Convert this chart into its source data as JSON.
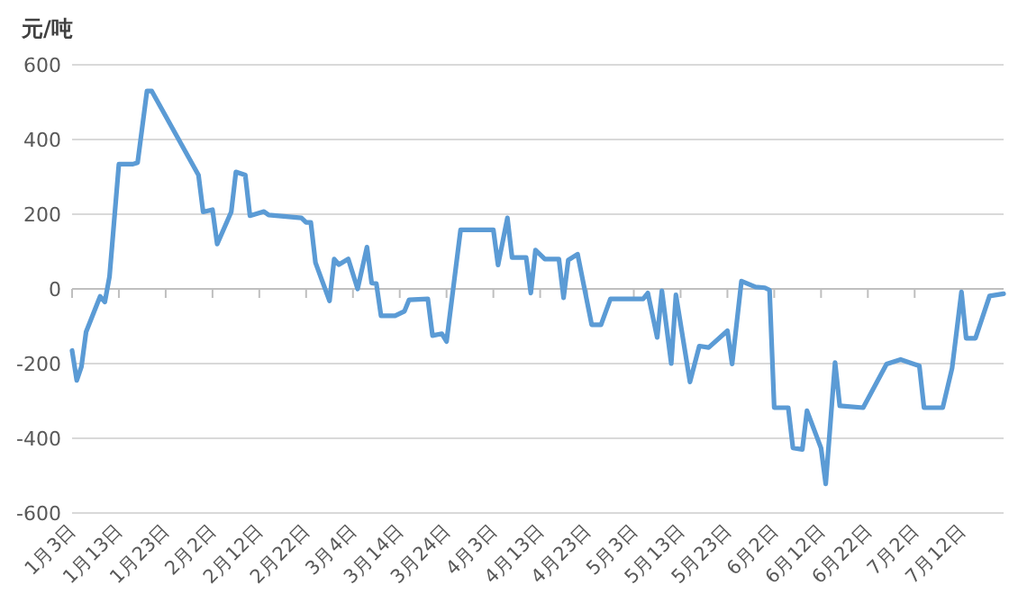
{
  "chart_data": {
    "type": "line",
    "ylabel": "元/吨",
    "color": "#5b9bd5",
    "grid": "y",
    "xlim": [
      "--01-03",
      "--07-21"
    ],
    "ylim": [
      -600,
      600
    ],
    "yticks": [
      -600,
      -400,
      -200,
      0,
      200,
      400,
      600
    ],
    "xticks": [
      {
        "value": "--01-03",
        "label": "1月3日"
      },
      {
        "value": "--01-13",
        "label": "1月13日"
      },
      {
        "value": "--01-23",
        "label": "1月23日"
      },
      {
        "value": "--02-02",
        "label": "2月2日"
      },
      {
        "value": "--02-12",
        "label": "2月12日"
      },
      {
        "value": "--02-22",
        "label": "2月22日"
      },
      {
        "value": "--03-04",
        "label": "3月4日"
      },
      {
        "value": "--03-14",
        "label": "3月14日"
      },
      {
        "value": "--03-24",
        "label": "3月24日"
      },
      {
        "value": "--04-03",
        "label": "4月3日"
      },
      {
        "value": "--04-13",
        "label": "4月13日"
      },
      {
        "value": "--04-23",
        "label": "4月23日"
      },
      {
        "value": "--05-03",
        "label": "5月3日"
      },
      {
        "value": "--05-13",
        "label": "5月13日"
      },
      {
        "value": "--05-23",
        "label": "5月23日"
      },
      {
        "value": "--06-02",
        "label": "6月2日"
      },
      {
        "value": "--06-12",
        "label": "6月12日"
      },
      {
        "value": "--06-22",
        "label": "6月22日"
      },
      {
        "value": "--07-02",
        "label": "7月2日"
      },
      {
        "value": "--07-12",
        "label": "7月12日"
      }
    ],
    "x": [
      "--01-03",
      "--01-04",
      "--01-05",
      "--01-06",
      "--01-09",
      "--01-10",
      "--01-11",
      "--01-13",
      "--01-16",
      "--01-17",
      "--01-19",
      "--01-20",
      "--01-30",
      "--01-31",
      "--02-02",
      "--02-03",
      "--02-06",
      "--02-07",
      "--02-09",
      "--02-10",
      "--02-13",
      "--02-14",
      "--02-21",
      "--02-22",
      "--02-23",
      "--02-24",
      "--02-27",
      "--02-28",
      "--03-01",
      "--03-03",
      "--03-05",
      "--03-07",
      "--03-08",
      "--03-09",
      "--03-10",
      "--03-13",
      "--03-15",
      "--03-16",
      "--03-20",
      "--03-21",
      "--03-23",
      "--03-24",
      "--03-27",
      "--04-03",
      "--04-04",
      "--04-06",
      "--04-07",
      "--04-10",
      "--04-11",
      "--04-12",
      "--04-14",
      "--04-17",
      "--04-18",
      "--04-19",
      "--04-21",
      "--04-24",
      "--04-26",
      "--04-28",
      "--05-05",
      "--05-06",
      "--05-08",
      "--05-09",
      "--05-11",
      "--05-12",
      "--05-15",
      "--05-17",
      "--05-19",
      "--05-23",
      "--05-24",
      "--05-26",
      "--05-29",
      "--05-31",
      "--06-01",
      "--06-02",
      "--06-05",
      "--06-06",
      "--06-08",
      "--06-09",
      "--06-12",
      "--06-13",
      "--06-15",
      "--06-16",
      "--06-21",
      "--06-26",
      "--06-29",
      "--07-03",
      "--07-04",
      "--07-08",
      "--07-10",
      "--07-12",
      "--07-13",
      "--07-15",
      "--07-18",
      "--07-21"
    ],
    "values": [
      -165,
      -245,
      -208,
      -115,
      -20,
      -35,
      33,
      334,
      334,
      338,
      530,
      530,
      305,
      206,
      212,
      120,
      206,
      313,
      305,
      196,
      207,
      198,
      190,
      178,
      178,
      70,
      -32,
      80,
      65,
      80,
      0,
      112,
      16,
      14,
      -72,
      -72,
      -60,
      -29,
      -27,
      -125,
      -120,
      -141,
      158,
      158,
      64,
      190,
      84,
      84,
      -11,
      104,
      80,
      80,
      -24,
      77,
      93,
      -96,
      -96,
      -27,
      -27,
      -11,
      -130,
      -5,
      -200,
      -16,
      -249,
      -153,
      -157,
      -112,
      -201,
      21,
      5,
      3,
      -3,
      -318,
      -318,
      -426,
      -430,
      -326,
      -426,
      -522,
      -197,
      -313,
      -318,
      -201,
      -189,
      -206,
      -318,
      -318,
      -212,
      -8,
      -132,
      -132,
      -19,
      -13
    ]
  }
}
